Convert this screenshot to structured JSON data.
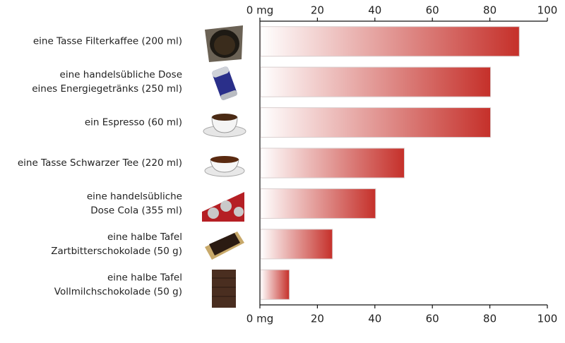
{
  "chart_data": {
    "type": "bar",
    "orientation": "horizontal",
    "categories": [
      [
        "eine Tasse Filterkaffee (200 ml)"
      ],
      [
        "eine handelsübliche Dose",
        "eines Energiegetränks (250 ml)"
      ],
      [
        "ein Espresso (60 ml)"
      ],
      [
        "eine Tasse Schwarzer Tee (220 ml)"
      ],
      [
        "eine handelsübliche",
        "Dose Cola (355 ml)"
      ],
      [
        "eine halbe Tafel",
        "Zartbitterschokolade (50 g)"
      ],
      [
        "eine halbe Tafel",
        "Vollmilchschokolade (50 g)"
      ]
    ],
    "values": [
      90,
      80,
      80,
      50,
      40,
      25,
      10
    ],
    "color": "#c5302a",
    "xlim": [
      0,
      100
    ],
    "xticks": [
      {
        "value": 0,
        "label": "0 mg"
      },
      20,
      40,
      60,
      80,
      100
    ]
  }
}
